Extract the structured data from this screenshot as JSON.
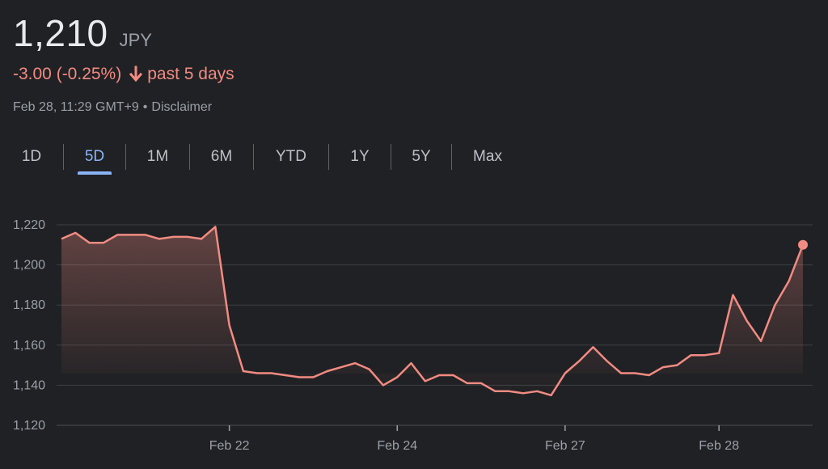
{
  "quote": {
    "price": "1,210",
    "currency": "JPY",
    "change": "-3.00 (-0.25%)",
    "period_text": "past 5 days",
    "timestamp": "Feb 28, 11:29 GMT+9",
    "separator": "•",
    "disclaimer": "Disclaimer"
  },
  "colors": {
    "background": "#202124",
    "line": "#f28b82",
    "negative": "#f28b82",
    "active_tab": "#8ab4f8",
    "grid": "#3c4043"
  },
  "icons": {
    "change_direction": "arrow-down-icon"
  },
  "tabs": [
    {
      "label": "1D",
      "active": false
    },
    {
      "label": "5D",
      "active": true
    },
    {
      "label": "1M",
      "active": false
    },
    {
      "label": "6M",
      "active": false
    },
    {
      "label": "YTD",
      "active": false
    },
    {
      "label": "1Y",
      "active": false
    },
    {
      "label": "5Y",
      "active": false
    },
    {
      "label": "Max",
      "active": false
    }
  ],
  "chart_data": {
    "type": "area",
    "title": "",
    "xlabel": "",
    "ylabel": "",
    "ylim": [
      1120,
      1220
    ],
    "y_ticks": [
      1220,
      1200,
      1180,
      1160,
      1140,
      1120
    ],
    "y_tick_labels": [
      "1,220",
      "1,200",
      "1,180",
      "1,160",
      "1,140",
      "1,120"
    ],
    "grid": true,
    "x_ticks": [
      {
        "label": "Feb 22",
        "index": 12
      },
      {
        "label": "Feb 24",
        "index": 24
      },
      {
        "label": "Feb 27",
        "index": 36
      },
      {
        "label": "Feb 28",
        "index": 47
      }
    ],
    "series": [
      {
        "values": [
          1213,
          1216,
          1211,
          1211,
          1215,
          1215,
          1215,
          1213,
          1214,
          1214,
          1213,
          1219,
          1170,
          1147,
          1146,
          1146,
          1145,
          1144,
          1144,
          1147,
          1149,
          1151,
          1148,
          1140,
          1144,
          1151,
          1142,
          1145,
          1145,
          1141,
          1141,
          1137,
          1137,
          1136,
          1137,
          1135,
          1146,
          1152,
          1159,
          1152,
          1146,
          1146,
          1145,
          1149,
          1150,
          1155,
          1155,
          1156,
          1185,
          1172,
          1162,
          1180,
          1192,
          1210
        ]
      }
    ]
  }
}
